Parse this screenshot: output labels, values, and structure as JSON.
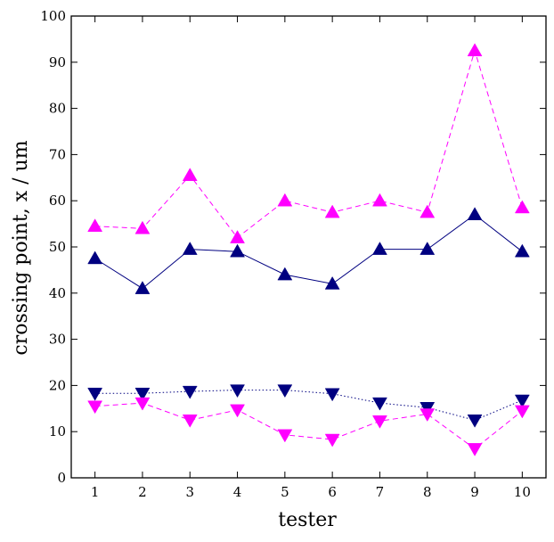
{
  "chart_data": {
    "type": "line",
    "xlabel": "tester",
    "ylabel": "crossing point, x / um",
    "xlim": [
      0.5,
      10.5
    ],
    "ylim": [
      0,
      100
    ],
    "x": [
      1,
      2,
      3,
      4,
      5,
      6,
      7,
      8,
      9,
      10
    ],
    "xticks": [
      "1",
      "2",
      "3",
      "4",
      "5",
      "6",
      "7",
      "8",
      "9",
      "10"
    ],
    "yticks": [
      "0",
      "10",
      "20",
      "30",
      "40",
      "50",
      "60",
      "70",
      "80",
      "90",
      "100"
    ],
    "grid": false,
    "series": [
      {
        "color": "#ff00ff",
        "line_style": "dashed",
        "marker": "triangle-up",
        "values": [
          54.5,
          54,
          65.5,
          52,
          60,
          57.5,
          60,
          57.5,
          92.5,
          58.5
        ]
      },
      {
        "color": "#000080",
        "line_style": "solid",
        "marker": "triangle-up",
        "values": [
          47.5,
          41,
          49.5,
          49,
          44,
          42,
          49.5,
          49.5,
          57,
          49
        ]
      },
      {
        "color": "#000080",
        "line_style": "dotted",
        "marker": "triangle-down",
        "values": [
          18.3,
          18.3,
          18.7,
          19.0,
          19.0,
          18.2,
          16.2,
          15.2,
          12.5,
          16.8
        ]
      },
      {
        "color": "#ff00ff",
        "line_style": "dashed",
        "marker": "triangle-down",
        "values": [
          15.5,
          16.2,
          12.5,
          14.7,
          9.3,
          8.3,
          12.3,
          13.8,
          6.3,
          14.5
        ]
      }
    ]
  }
}
